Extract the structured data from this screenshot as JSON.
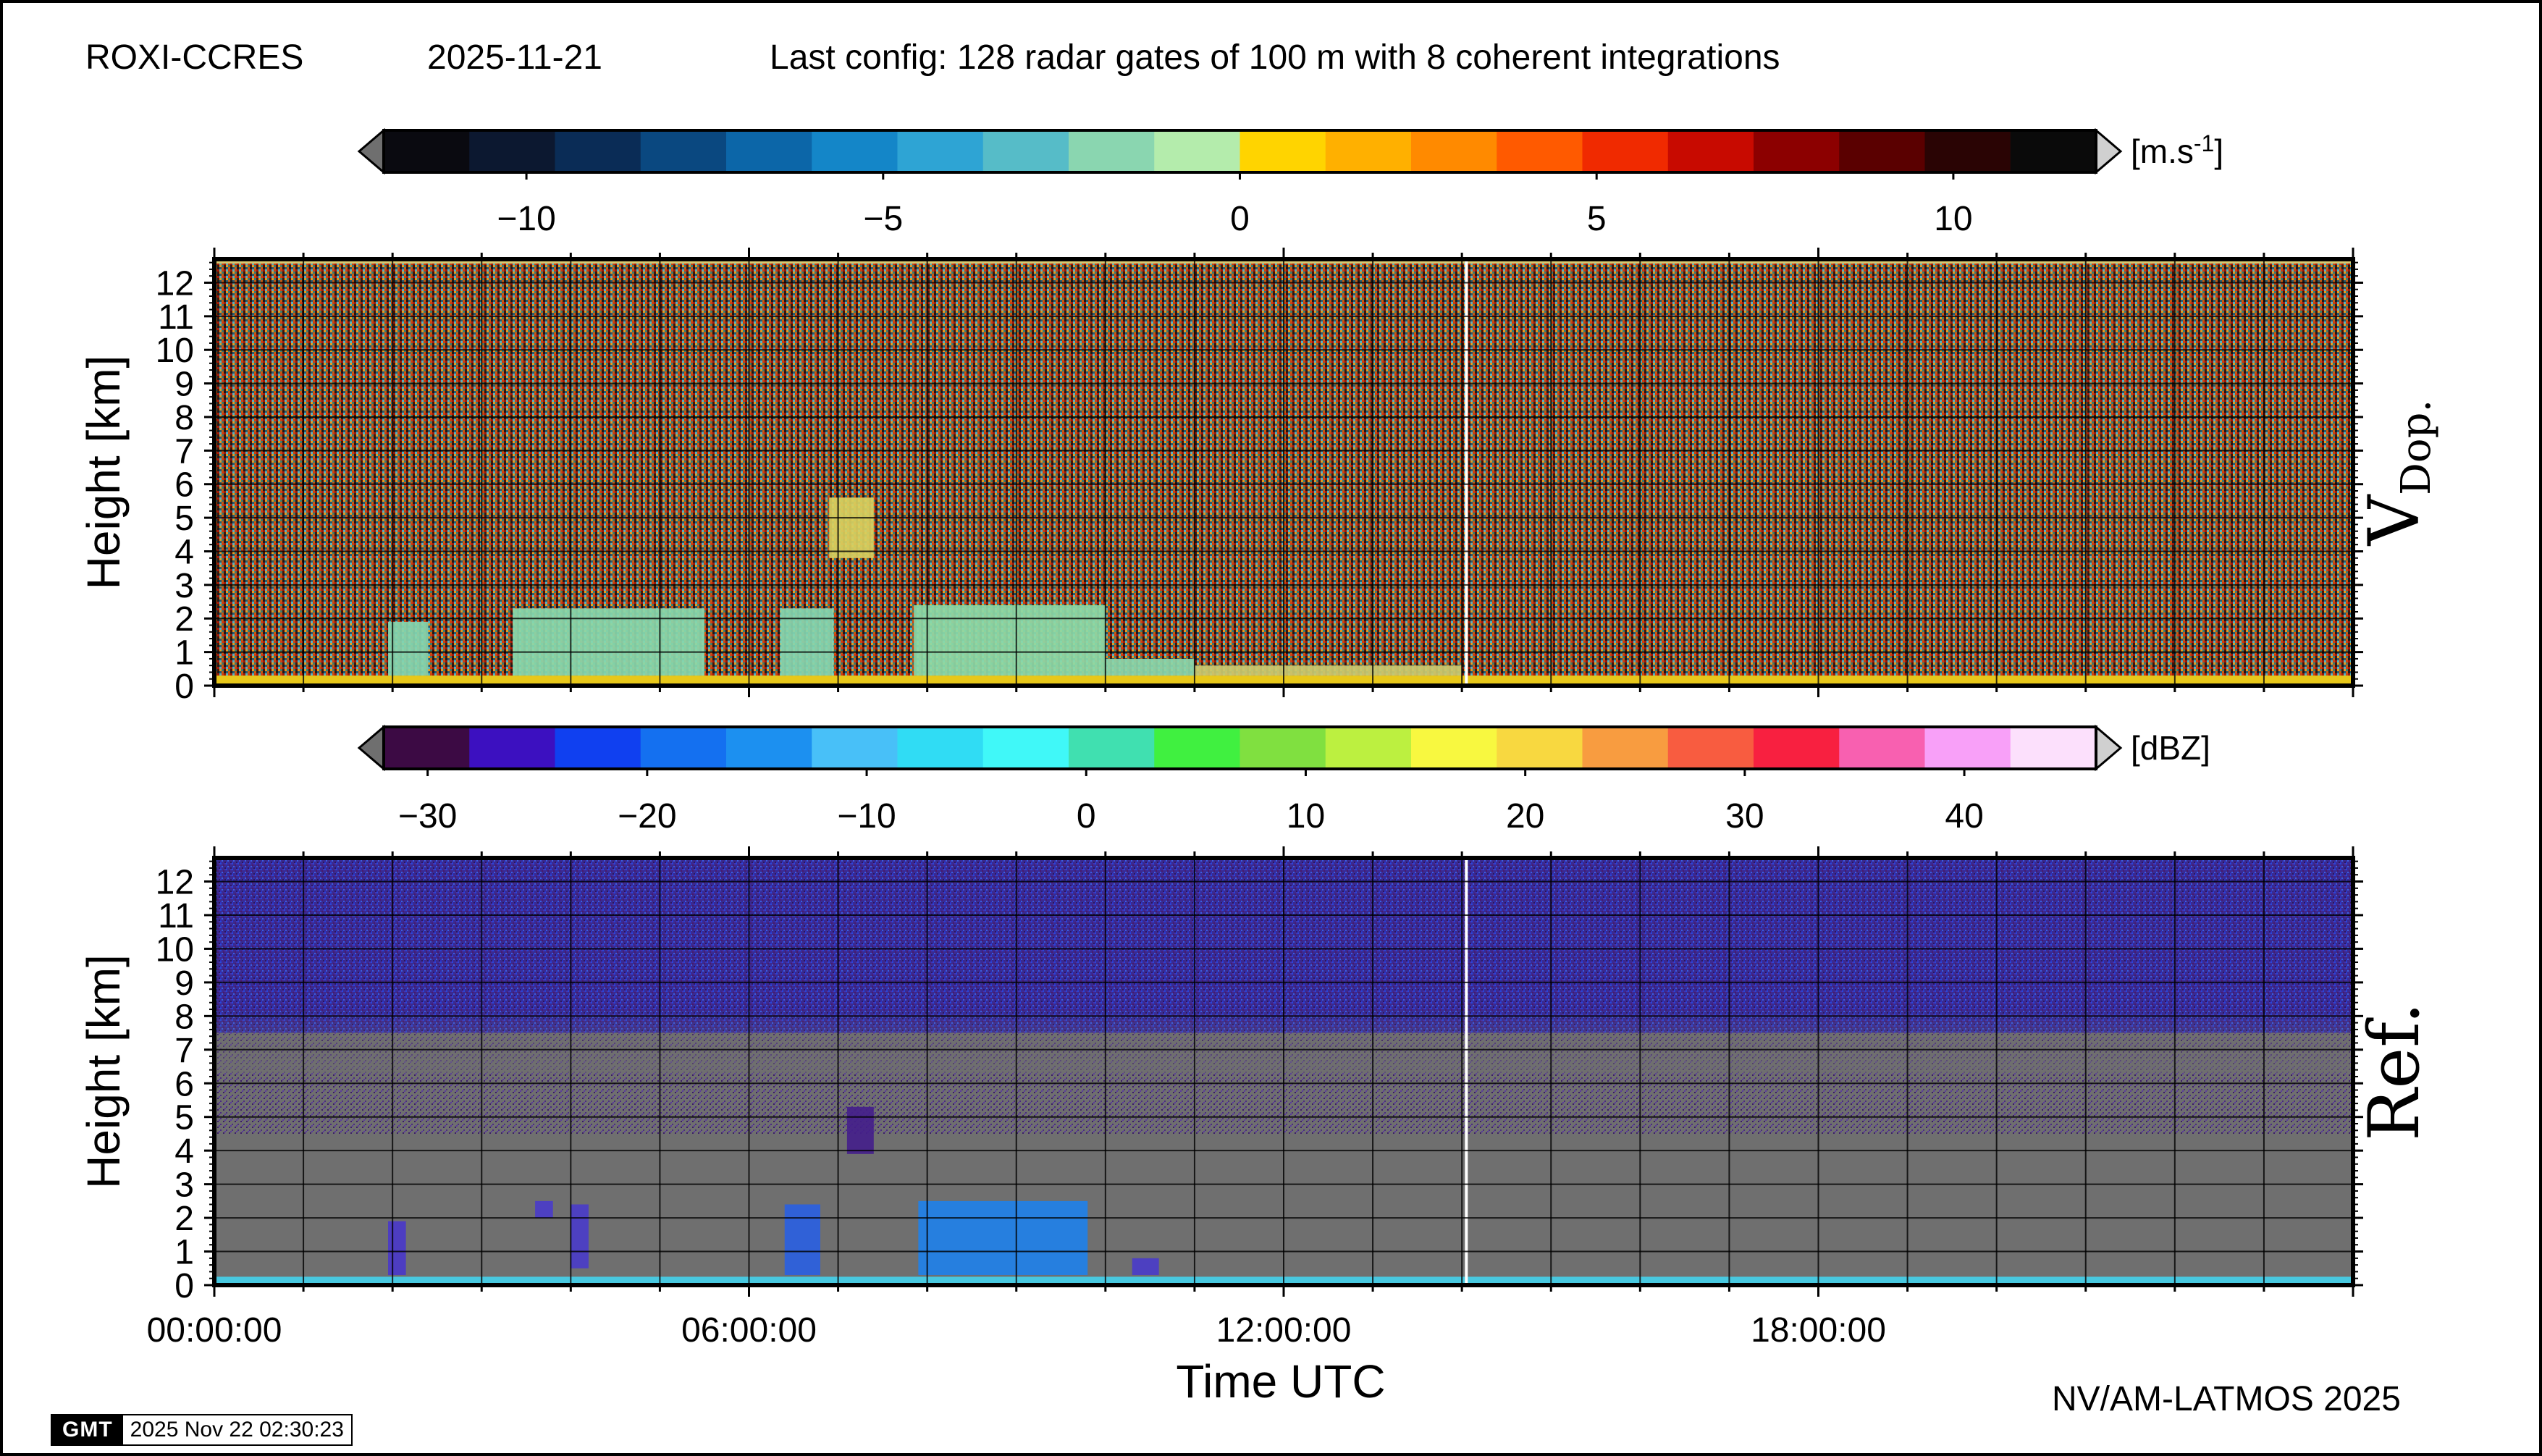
{
  "header": {
    "station": "ROXI-CCRES",
    "date": "2025-11-21",
    "config": "Last config: 128 radar gates of 100 m with 8 coherent integrations"
  },
  "footer": {
    "gmt_logo": "GMT",
    "timestamp": "2025 Nov 22 02:30:23",
    "credit": "NV/AM-LATMOS 2025"
  },
  "chart_data": [
    {
      "type": "heatmap",
      "panel_label": "V",
      "panel_label_sub": "Dop.",
      "ylabel": "Height [km]",
      "xlabel": "",
      "x_range_hours": [
        0,
        24
      ],
      "ylim": [
        0,
        12.7
      ],
      "y_ticks": [
        "0",
        "1",
        "2",
        "3",
        "4",
        "5",
        "6",
        "7",
        "8",
        "9",
        "10",
        "11",
        "12"
      ],
      "grid": true,
      "colorbar": {
        "unit_main": "[m.s",
        "unit_sup": "-1",
        "unit_end": "]",
        "range": [
          -12,
          12
        ],
        "ticks": [
          {
            "value": -10,
            "label": "−10"
          },
          {
            "value": -5,
            "label": "−5"
          },
          {
            "value": 0,
            "label": "0"
          },
          {
            "value": 5,
            "label": "5"
          },
          {
            "value": 10,
            "label": "10"
          }
        ],
        "stops": [
          "#0a0a10",
          "#0c1830",
          "#0a2c56",
          "#0a4880",
          "#0c66a8",
          "#1486c8",
          "#2ea4d4",
          "#56bcc8",
          "#8ad6b0",
          "#b4ecac",
          "#ffd400",
          "#ffb000",
          "#ff8a00",
          "#ff5a00",
          "#f02a00",
          "#c80a00",
          "#8c0000",
          "#5a0000",
          "#2a0404",
          "#0a0a0a"
        ]
      },
      "features": [
        {
          "t": [
            1.95,
            2.4
          ],
          "h": [
            0.3,
            1.9
          ],
          "color": "#84d6b0"
        },
        {
          "t": [
            3.35,
            5.5
          ],
          "h": [
            0.3,
            2.3
          ],
          "color": "#88d8ac"
        },
        {
          "t": [
            6.35,
            6.95
          ],
          "h": [
            0.3,
            2.3
          ],
          "color": "#84d6b0"
        },
        {
          "t": [
            7.85,
            10.0
          ],
          "h": [
            0.3,
            2.4
          ],
          "color": "#8cdaa8"
        },
        {
          "t": [
            10.0,
            11.0
          ],
          "h": [
            0.3,
            0.8
          ],
          "color": "#8ad6aa"
        },
        {
          "t": [
            11.0,
            14.0
          ],
          "h": [
            0.3,
            0.6
          ],
          "color": "#caca70"
        },
        {
          "t": [
            6.9,
            7.4
          ],
          "h": [
            3.8,
            5.6
          ],
          "color": "#d8d060"
        }
      ]
    },
    {
      "type": "heatmap",
      "panel_label": "Ref.",
      "ylabel": "Height [km]",
      "xlabel": "Time UTC",
      "x_ticks": [
        "00:00:00",
        "06:00:00",
        "12:00:00",
        "18:00:00"
      ],
      "x_range_hours": [
        0,
        24
      ],
      "ylim": [
        0,
        12.7
      ],
      "y_ticks": [
        "0",
        "1",
        "2",
        "3",
        "4",
        "5",
        "6",
        "7",
        "8",
        "9",
        "10",
        "11",
        "12"
      ],
      "grid": true,
      "background_color": "#6f6f6f",
      "colorbar": {
        "unit_main": "[dBZ]",
        "range": [
          -32,
          46
        ],
        "ticks": [
          {
            "value": -30,
            "label": "−30"
          },
          {
            "value": -20,
            "label": "−20"
          },
          {
            "value": -10,
            "label": "−10"
          },
          {
            "value": 0,
            "label": "0"
          },
          {
            "value": 10,
            "label": "10"
          },
          {
            "value": 20,
            "label": "20"
          },
          {
            "value": 30,
            "label": "30"
          },
          {
            "value": 40,
            "label": "40"
          }
        ],
        "stops": [
          "#3c0a44",
          "#3c10c0",
          "#1040f0",
          "#1470f0",
          "#1c90f0",
          "#48c0f8",
          "#30dcf4",
          "#40f8f8",
          "#40e0b0",
          "#40f040",
          "#80e040",
          "#bcf040",
          "#f8f840",
          "#f8d840",
          "#f89c40",
          "#f85c40",
          "#f82040",
          "#f860b0",
          "#f8a0f8",
          "#fce0fc"
        ]
      },
      "features": [
        {
          "t": [
            1.95,
            2.15
          ],
          "h": [
            0.3,
            1.9
          ],
          "color": "#4a38c8"
        },
        {
          "t": [
            3.6,
            3.8
          ],
          "h": [
            2.0,
            2.5
          ],
          "color": "#4a3cc8"
        },
        {
          "t": [
            4.0,
            4.2
          ],
          "h": [
            0.5,
            2.4
          ],
          "color": "#4a3cc8"
        },
        {
          "t": [
            6.4,
            6.8
          ],
          "h": [
            0.3,
            2.4
          ],
          "color": "#2a60e0"
        },
        {
          "t": [
            7.9,
            9.8
          ],
          "h": [
            0.3,
            2.5
          ],
          "color": "#2080e8"
        },
        {
          "t": [
            10.3,
            10.6
          ],
          "h": [
            0.3,
            0.8
          ],
          "color": "#4a3cc8"
        },
        {
          "t": [
            7.1,
            7.4
          ],
          "h": [
            3.9,
            5.3
          ],
          "color": "#44208a"
        }
      ]
    }
  ]
}
